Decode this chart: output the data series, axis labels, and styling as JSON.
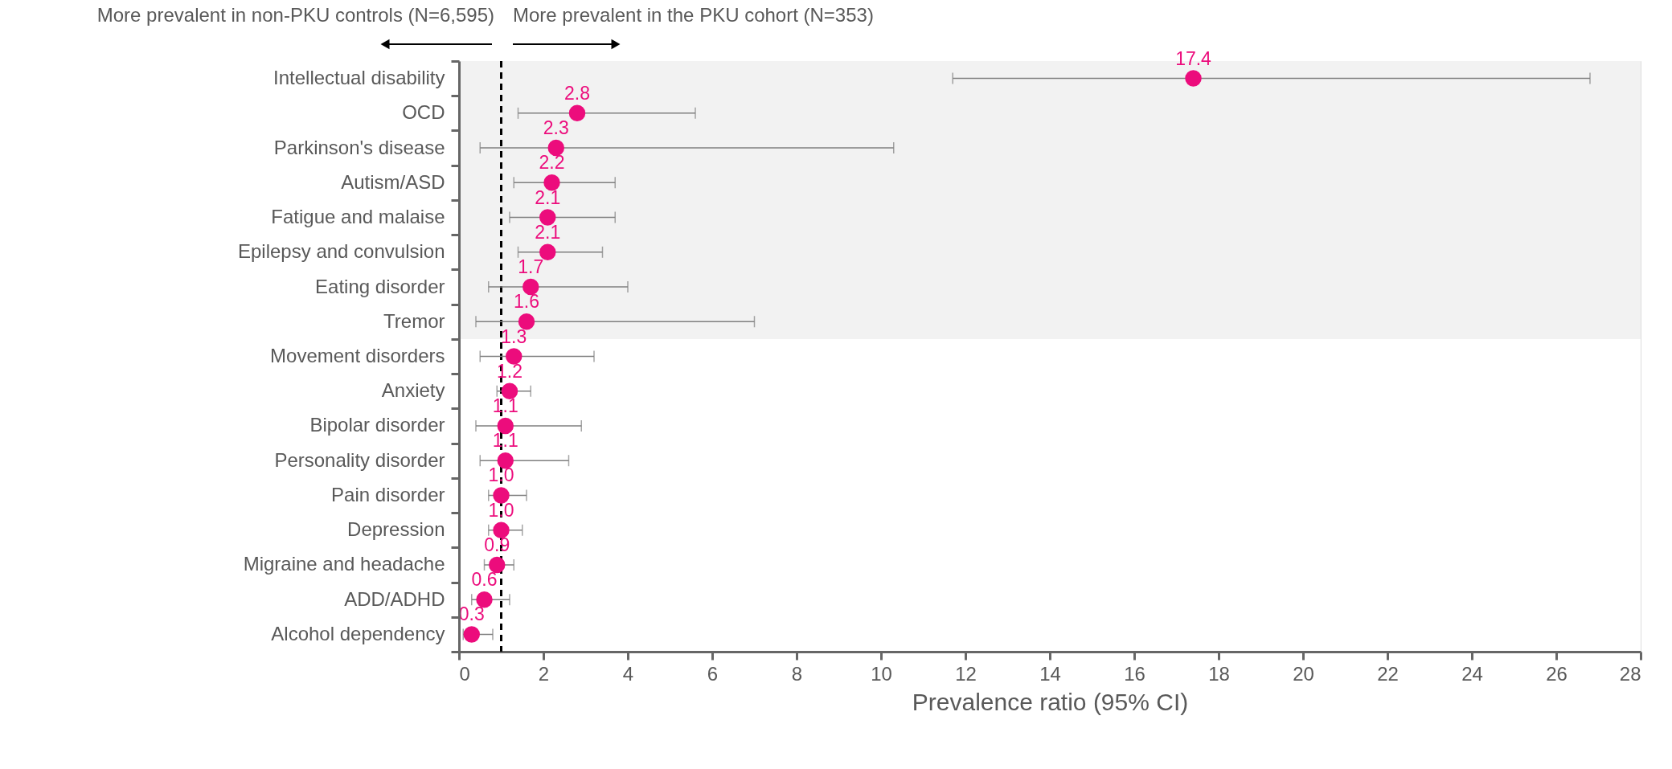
{
  "chart_data": {
    "type": "scatter",
    "xlabel": "Prevalence ratio (95% CI)",
    "annotations": [
      "More prevalent in non-PKU controls (N=6,595)",
      "More prevalent in the PKU cohort (N=353)"
    ],
    "categories": [
      "Intellectual disability",
      "OCD",
      "Parkinson's disease",
      "Autism/ASD",
      "Fatigue and malaise",
      "Epilepsy and convulsion",
      "Eating disorder",
      "Tremor",
      "Movement disorders",
      "Anxiety",
      "Bipolar disorder",
      "Personality disorder",
      "Pain disorder",
      "Depression",
      "Migraine and headache",
      "ADD/ADHD",
      "Alcohol dependency"
    ],
    "series": [
      {
        "color": "#ec0c7c",
        "values": [
          17.4,
          2.8,
          2.3,
          2.2,
          2.1,
          2.1,
          1.7,
          1.6,
          1.3,
          1.2,
          1.1,
          1.1,
          1.0,
          1.0,
          0.9,
          0.6,
          0.3
        ],
        "value_labels": [
          "17.4",
          "2.8",
          "2.3",
          "2.2",
          "2.1",
          "2.1",
          "1.7",
          "1.6",
          "1.3",
          "1.2",
          "1.1",
          "1.1",
          "1.0",
          "1.0",
          "0.9",
          "0.6",
          "0.3"
        ],
        "errors": [
          [
            11.7,
            26.8
          ],
          [
            1.4,
            5.6
          ],
          [
            0.5,
            10.3
          ],
          [
            1.3,
            3.7
          ],
          [
            1.2,
            3.7
          ],
          [
            1.4,
            3.4
          ],
          [
            0.7,
            4.0
          ],
          [
            0.4,
            7.0
          ],
          [
            0.5,
            3.2
          ],
          [
            0.9,
            1.7
          ],
          [
            0.4,
            2.9
          ],
          [
            0.5,
            2.6
          ],
          [
            0.7,
            1.6
          ],
          [
            0.7,
            1.5
          ],
          [
            0.6,
            1.3
          ],
          [
            0.3,
            1.2
          ],
          [
            0.1,
            0.8
          ]
        ]
      }
    ],
    "orientation": "horizontal",
    "marker": "circle",
    "xlim": [
      0,
      28
    ],
    "xticks": [
      0,
      2,
      4,
      6,
      8,
      10,
      12,
      14,
      16,
      18,
      20,
      22,
      24,
      26,
      28
    ],
    "grid": false,
    "ref_lines": [
      {
        "axis": "x",
        "value": 1,
        "color": "#000000",
        "line_style": "dashed"
      }
    ],
    "bands": [
      {
        "axis": "y",
        "from": "Intellectual disability",
        "to": "Tremor",
        "color": "#f2f2f2"
      }
    ]
  }
}
